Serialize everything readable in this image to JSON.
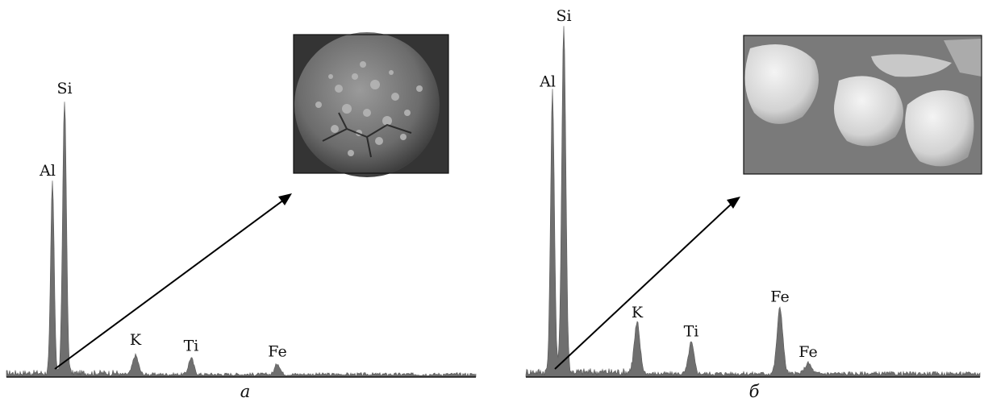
{
  "chart_data": [
    {
      "type": "area",
      "caption": "а",
      "peaks": [
        {
          "label": "Al",
          "value": 0.7
        },
        {
          "label": "Si",
          "value": 1.0
        },
        {
          "label": "K",
          "value": 0.07
        },
        {
          "label": "Ti",
          "value": 0.06
        },
        {
          "label": "Fe",
          "value": 0.04
        }
      ],
      "inset": {
        "kind": "micrograph",
        "subject": "single rough spherical particle"
      }
    },
    {
      "type": "area",
      "caption": "б",
      "peaks": [
        {
          "label": "Al",
          "value": 0.81
        },
        {
          "label": "Si",
          "value": 1.0
        },
        {
          "label": "K",
          "value": 0.14
        },
        {
          "label": "Ti",
          "value": 0.09
        },
        {
          "label": "Fe",
          "value": 0.19
        },
        {
          "label": "Fe",
          "value": 0.03
        }
      ],
      "inset": {
        "kind": "micrograph",
        "subject": "smooth rounded particles"
      }
    }
  ]
}
